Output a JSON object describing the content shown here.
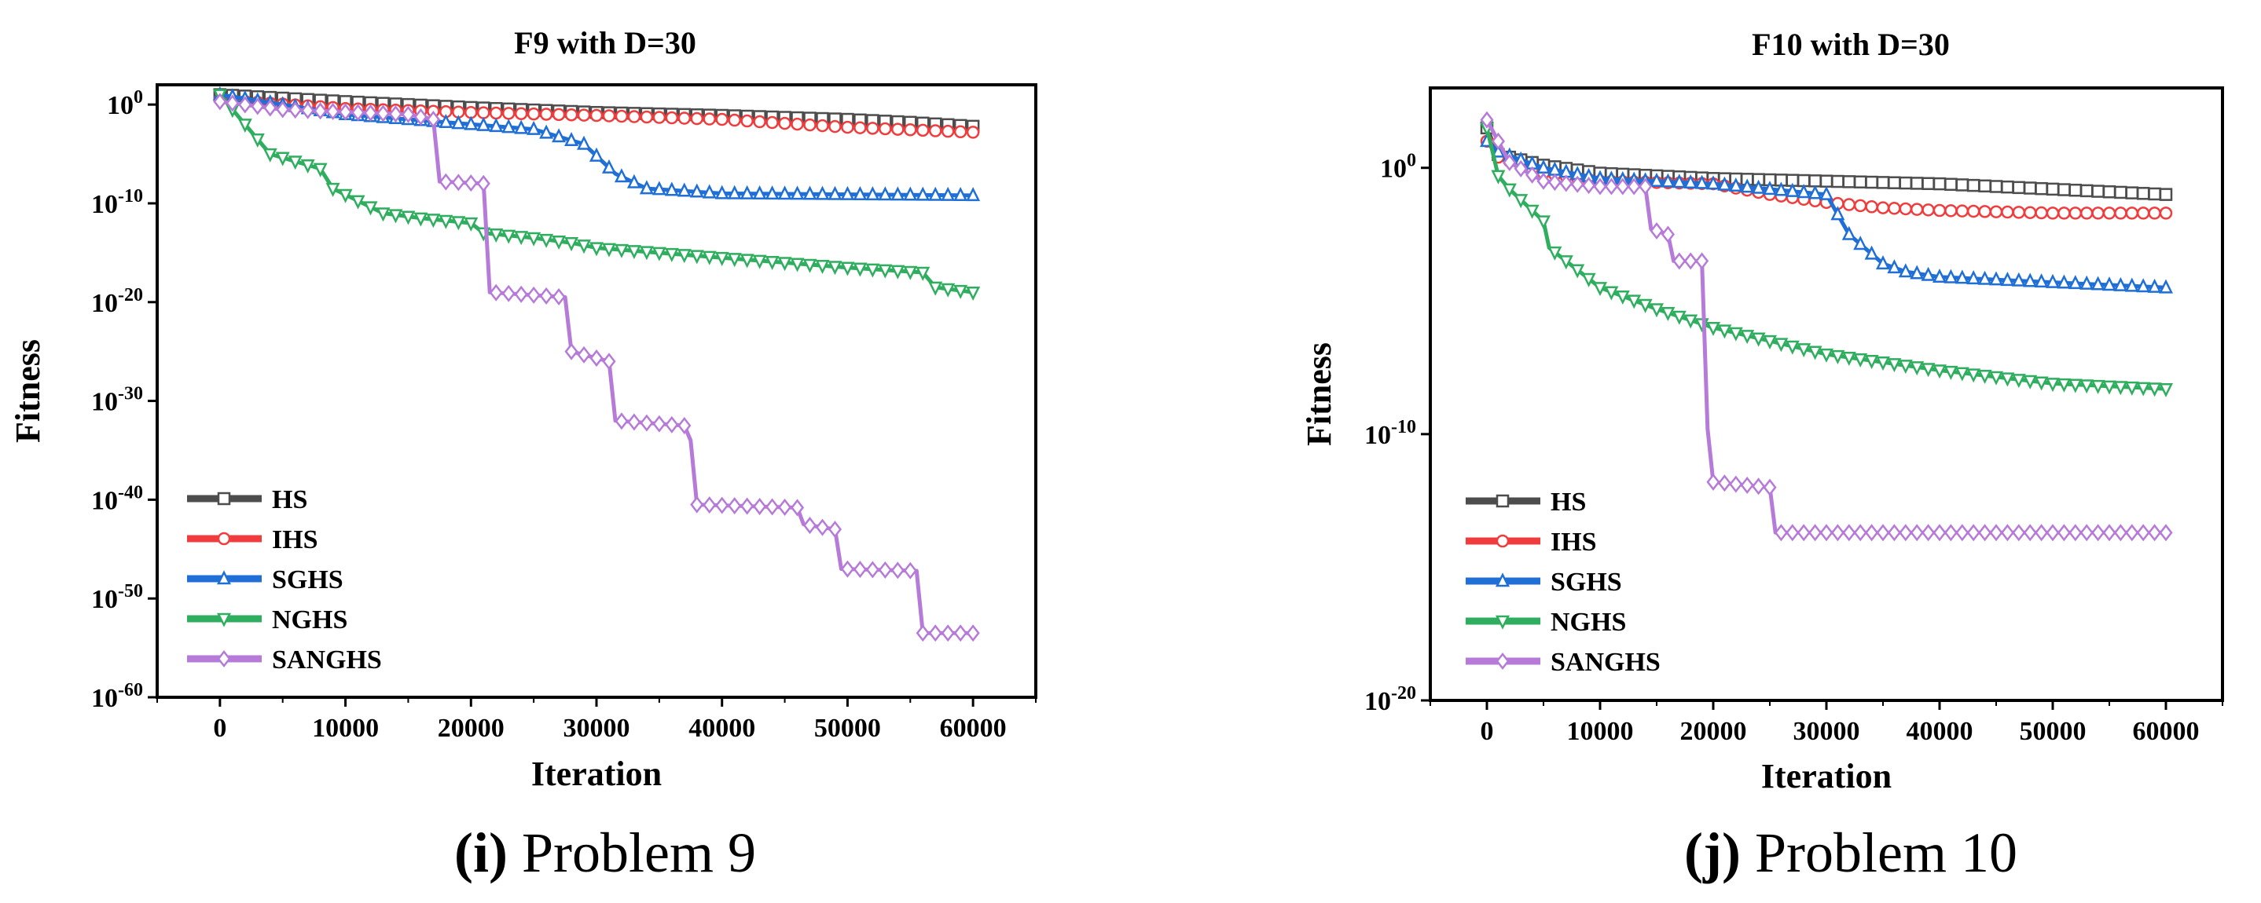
{
  "chart_data": [
    {
      "type": "line",
      "title": "F9 with D=30",
      "xlabel": "Iteration",
      "ylabel": "Fitness",
      "yscale": "log",
      "xlim": [
        -5000,
        65000
      ],
      "ylim_exponent": [
        -60,
        2
      ],
      "x_ticks": [
        0,
        10000,
        20000,
        30000,
        40000,
        50000,
        60000
      ],
      "y_ticks_exponent": [
        0,
        -10,
        -20,
        -30,
        -40,
        -50,
        -60
      ],
      "legend_position": "bottom-left",
      "caption_letter": "(i)",
      "caption_text": " Problem 9",
      "series": [
        {
          "name": "HS",
          "color": "#4d4d4d",
          "marker": "square",
          "points": [
            [
              0,
              1
            ],
            [
              10000,
              0.3
            ],
            [
              20000,
              -0.3
            ],
            [
              30000,
              -0.8
            ],
            [
              40000,
              -1.1
            ],
            [
              50000,
              -1.5
            ],
            [
              55000,
              -1.8
            ],
            [
              60000,
              -2.2
            ]
          ]
        },
        {
          "name": "IHS",
          "color": "#f03c3c",
          "marker": "circle",
          "points": [
            [
              0,
              0.5
            ],
            [
              10000,
              -0.4
            ],
            [
              20000,
              -0.8
            ],
            [
              30000,
              -1.1
            ],
            [
              40000,
              -1.5
            ],
            [
              50000,
              -2.3
            ],
            [
              60000,
              -2.8
            ]
          ]
        },
        {
          "name": "SGHS",
          "color": "#1f6fd6",
          "marker": "triangle-up",
          "points": [
            [
              0,
              1
            ],
            [
              10000,
              -1
            ],
            [
              20000,
              -2
            ],
            [
              25000,
              -2.5
            ],
            [
              29000,
              -4
            ],
            [
              31500,
              -7
            ],
            [
              34000,
              -8.5
            ],
            [
              40000,
              -9
            ],
            [
              60000,
              -9.2
            ]
          ]
        },
        {
          "name": "NGHS",
          "color": "#2fae5f",
          "marker": "triangle-down",
          "points": [
            [
              0,
              1
            ],
            [
              4000,
              -5
            ],
            [
              8000,
              -6.5
            ],
            [
              9000,
              -8.5
            ],
            [
              13000,
              -11
            ],
            [
              16000,
              -11.5
            ],
            [
              20000,
              -12
            ],
            [
              21000,
              -13
            ],
            [
              25000,
              -13.5
            ],
            [
              28000,
              -14
            ],
            [
              30000,
              -14.5
            ],
            [
              40000,
              -15.5
            ],
            [
              50000,
              -16.5
            ],
            [
              56000,
              -17
            ],
            [
              57000,
              -18.5
            ],
            [
              60000,
              -19
            ]
          ]
        },
        {
          "name": "SANGHS",
          "color": "#b67ad9",
          "marker": "diamond",
          "points": [
            [
              0,
              0.3
            ],
            [
              5000,
              -0.5
            ],
            [
              15000,
              -1
            ],
            [
              17000,
              -1.5
            ],
            [
              17500,
              -7.8
            ],
            [
              21000,
              -8
            ],
            [
              21500,
              -19
            ],
            [
              27500,
              -19.5
            ],
            [
              28000,
              -25
            ],
            [
              31000,
              -26
            ],
            [
              31500,
              -32
            ],
            [
              37000,
              -32.5
            ],
            [
              37500,
              -34
            ],
            [
              38000,
              -40.5
            ],
            [
              46000,
              -40.8
            ],
            [
              46500,
              -42.5
            ],
            [
              49000,
              -43
            ],
            [
              49500,
              -47
            ],
            [
              55500,
              -47.2
            ],
            [
              56000,
              -53.5
            ],
            [
              60000,
              -53.5
            ]
          ]
        }
      ]
    },
    {
      "type": "line",
      "title": "F10 with D=30",
      "xlabel": "Iteration",
      "ylabel": "Fitness",
      "yscale": "log",
      "xlim": [
        -5000,
        65000
      ],
      "ylim_exponent": [
        -20,
        3
      ],
      "x_ticks": [
        0,
        10000,
        20000,
        30000,
        40000,
        50000,
        60000
      ],
      "y_ticks_exponent": [
        0,
        -10,
        -20
      ],
      "legend_position": "bottom-left",
      "caption_letter": "(j)",
      "caption_text": " Problem 10",
      "series": [
        {
          "name": "HS",
          "color": "#4d4d4d",
          "marker": "square",
          "points": [
            [
              0,
              1.5
            ],
            [
              1000,
              0.5
            ],
            [
              5000,
              0.1
            ],
            [
              10000,
              -0.2
            ],
            [
              20000,
              -0.4
            ],
            [
              30000,
              -0.5
            ],
            [
              40000,
              -0.6
            ],
            [
              50000,
              -0.8
            ],
            [
              60000,
              -1
            ]
          ]
        },
        {
          "name": "IHS",
          "color": "#f03c3c",
          "marker": "circle",
          "points": [
            [
              0,
              1
            ],
            [
              1000,
              0.4
            ],
            [
              5000,
              -0.2
            ],
            [
              10000,
              -0.5
            ],
            [
              20000,
              -0.6
            ],
            [
              25000,
              -1
            ],
            [
              30000,
              -1.3
            ],
            [
              35000,
              -1.5
            ],
            [
              40000,
              -1.6
            ],
            [
              50000,
              -1.7
            ],
            [
              60000,
              -1.7
            ]
          ]
        },
        {
          "name": "SGHS",
          "color": "#1f6fd6",
          "marker": "triangle-up",
          "points": [
            [
              0,
              1
            ],
            [
              1000,
              0.6
            ],
            [
              5000,
              0
            ],
            [
              10000,
              -0.4
            ],
            [
              20000,
              -0.6
            ],
            [
              30000,
              -1
            ],
            [
              32000,
              -2.5
            ],
            [
              35000,
              -3.6
            ],
            [
              37000,
              -3.9
            ],
            [
              40000,
              -4.1
            ],
            [
              50000,
              -4.3
            ],
            [
              60000,
              -4.5
            ]
          ]
        },
        {
          "name": "NGHS",
          "color": "#2fae5f",
          "marker": "triangle-down",
          "points": [
            [
              0,
              1.5
            ],
            [
              1000,
              -0.3
            ],
            [
              2000,
              -0.8
            ],
            [
              5000,
              -2
            ],
            [
              5500,
              -3
            ],
            [
              10000,
              -4.5
            ],
            [
              15000,
              -5.3
            ],
            [
              20000,
              -6
            ],
            [
              23000,
              -6.3
            ],
            [
              25000,
              -6.5
            ],
            [
              30000,
              -7
            ],
            [
              35000,
              -7.3
            ],
            [
              40000,
              -7.6
            ],
            [
              50000,
              -8.1
            ],
            [
              60000,
              -8.3
            ]
          ]
        },
        {
          "name": "SANGHS",
          "color": "#b67ad9",
          "marker": "diamond",
          "points": [
            [
              0,
              1.8
            ],
            [
              2000,
              0.2
            ],
            [
              5000,
              -0.5
            ],
            [
              10000,
              -0.7
            ],
            [
              14000,
              -0.7
            ],
            [
              14500,
              -2.3
            ],
            [
              16000,
              -2.5
            ],
            [
              16500,
              -3.5
            ],
            [
              19000,
              -3.5
            ],
            [
              19500,
              -9.8
            ],
            [
              20000,
              -11.8
            ],
            [
              25000,
              -12
            ],
            [
              25500,
              -13.7
            ],
            [
              60000,
              -13.7
            ]
          ]
        }
      ]
    }
  ]
}
